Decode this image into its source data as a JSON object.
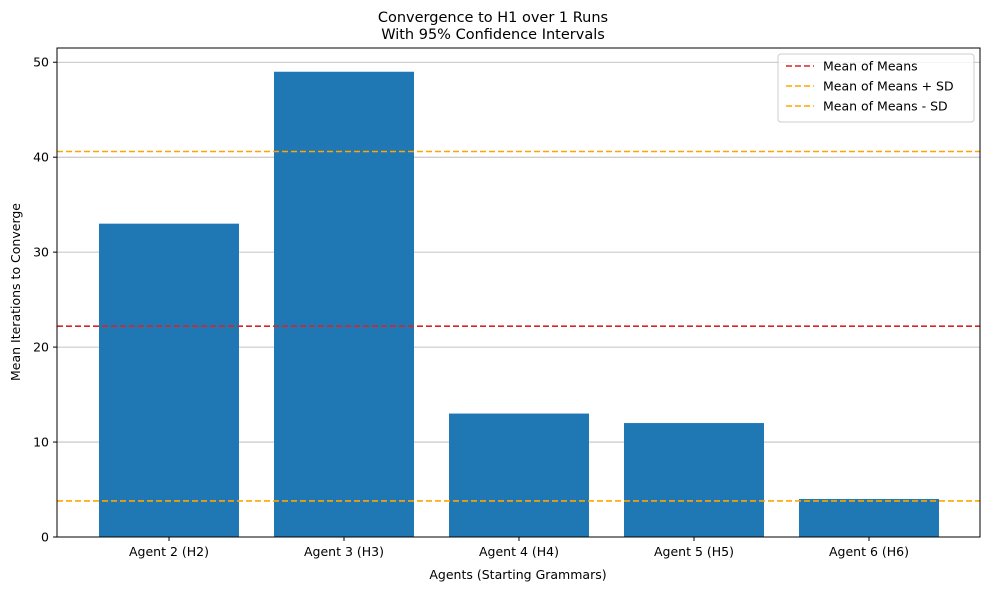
{
  "chart_data": {
    "type": "bar",
    "title_lines": [
      "Convergence to H1 over 1 Runs",
      "With 95% Confidence Intervals"
    ],
    "xlabel": "Agents (Starting Grammars)",
    "ylabel": "Mean Iterations to Converge",
    "categories": [
      "Agent 2 (H2)",
      "Agent 3 (H3)",
      "Agent 4 (H4)",
      "Agent 5 (H5)",
      "Agent 6 (H6)"
    ],
    "values": [
      33,
      49,
      13,
      12,
      4
    ],
    "ylim": [
      0,
      51.5
    ],
    "yticks": [
      0,
      10,
      20,
      30,
      40,
      50
    ],
    "grid": "y",
    "bar_color": "#1f77b4",
    "reference_lines": [
      {
        "name": "Mean of Means",
        "value": 22.2,
        "color": "#d62728"
      },
      {
        "name": "Mean of Means + SD",
        "value": 40.6,
        "color": "#ffa500"
      },
      {
        "name": "Mean of Means - SD",
        "value": 3.8,
        "color": "#ffa500"
      }
    ],
    "legend_position": "top-right"
  }
}
